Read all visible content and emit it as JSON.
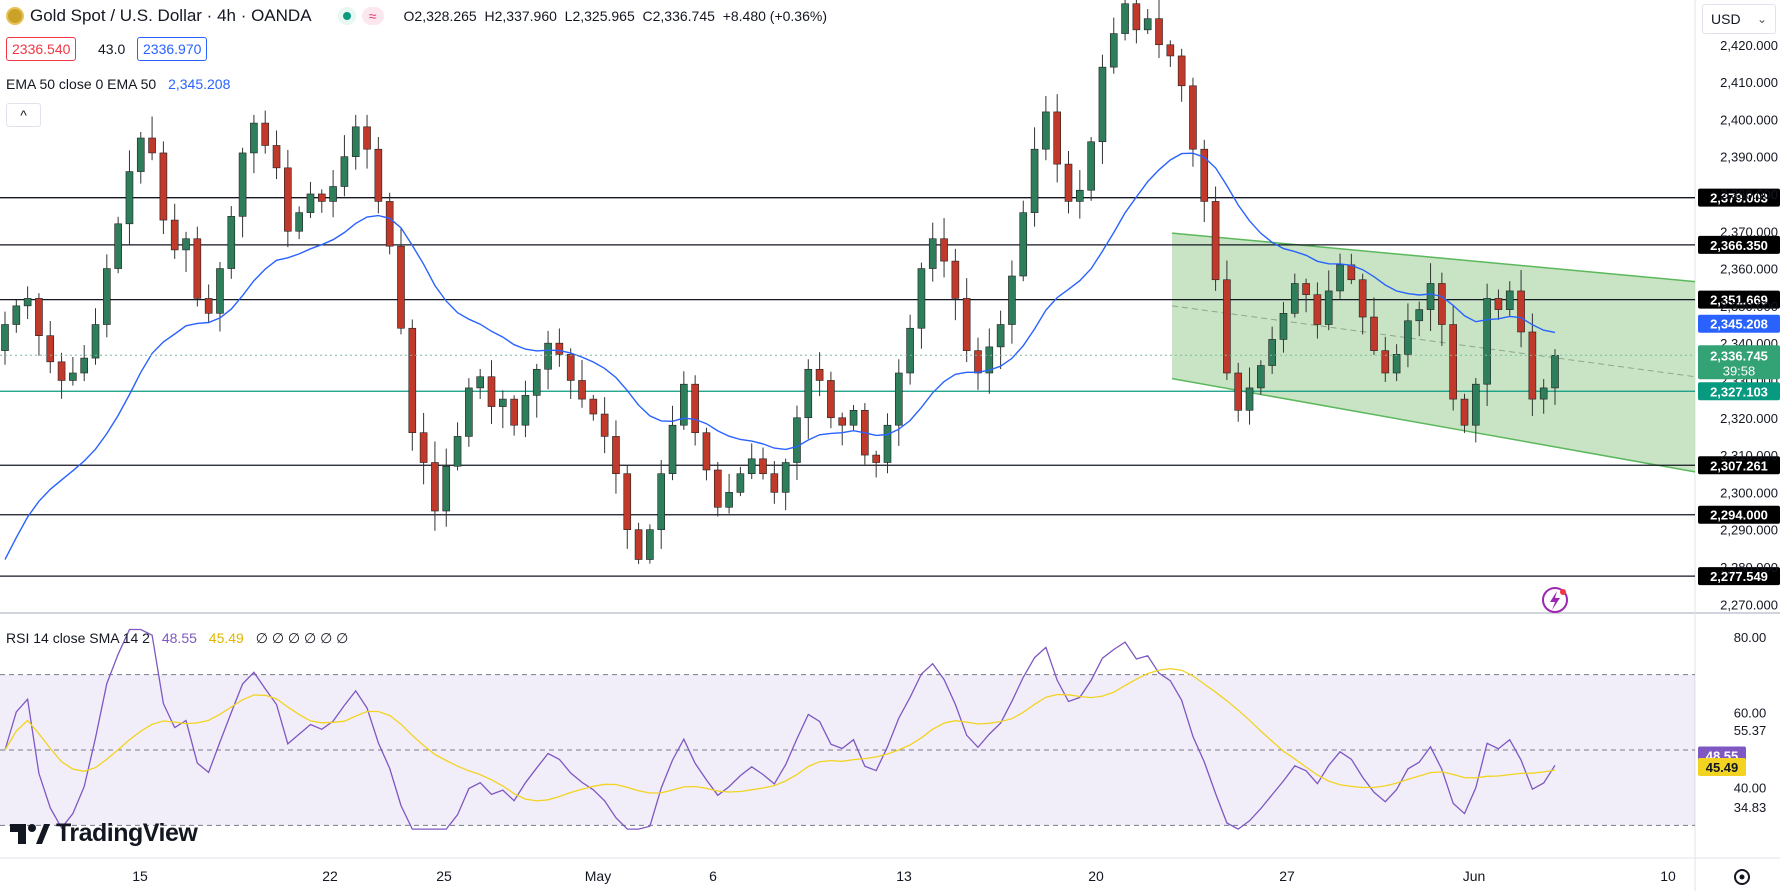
{
  "header": {
    "symbol": "Gold Spot / U.S. Dollar · 4h · OANDA",
    "ohlc": "O2,328.265  H2,337.960  L2,325.965  C2,336.745  +8.480 (+0.36%)",
    "bid": "2336.540",
    "spread": "43.0",
    "ask": "2336.970",
    "ema_label": "EMA 50 close 0 EMA 50",
    "ema_value": "2,345.208",
    "collapse": "^"
  },
  "currency": "USD",
  "colors": {
    "up": "#2e7d5b",
    "down": "#c0392b",
    "ema": "#2962ff",
    "rsi": "#7e57c2",
    "rsi_ma": "#f2d322",
    "channel": "#b5dbb0",
    "support_teal": "#089981"
  },
  "chart_data": [
    {
      "type": "candlestick",
      "title": "Gold Spot / U.S. Dollar · 4h · OANDA",
      "ylim": [
        2266,
        2432
      ],
      "y_ticks": [
        "2,420.000",
        "2,410.000",
        "2,400.000",
        "2,390.000",
        "2,380.000",
        "2,370.000",
        "2,360.000",
        "2,350.000",
        "2,340.000",
        "2,330.000",
        "2,320.000",
        "2,310.000",
        "2,300.000",
        "2,290.000",
        "2,280.000",
        "2,270.000"
      ],
      "x_ticks": [
        "15",
        "22",
        "25",
        "May",
        "6",
        "13",
        "20",
        "27",
        "Jun",
        "10"
      ],
      "horizontal_levels": [
        {
          "label": "2,379.003",
          "value": 2379.003
        },
        {
          "label": "2,366.350",
          "value": 2366.35
        },
        {
          "label": "2,351.669",
          "value": 2351.669
        },
        {
          "label": "2,307.261",
          "value": 2307.261
        },
        {
          "label": "2,294.000",
          "value": 2294.0
        },
        {
          "label": "2,277.549",
          "value": 2277.549
        }
      ],
      "support_level": {
        "label": "2,327.103",
        "value": 2327.103
      },
      "ema_tag": {
        "label": "2,345.208",
        "value": 2345.208
      },
      "price_tag": {
        "label": "2,336.745",
        "countdown": "39:58",
        "value": 2336.745
      },
      "closes": [
        2345,
        2350,
        2352,
        2342,
        2335,
        2330,
        2332,
        2336,
        2345,
        2360,
        2372,
        2386,
        2395,
        2391,
        2373,
        2365,
        2368,
        2352,
        2348,
        2360,
        2374,
        2391,
        2399,
        2393,
        2387,
        2370,
        2375,
        2380,
        2378,
        2382,
        2390,
        2398,
        2392,
        2378,
        2366,
        2344,
        2316,
        2308,
        2295,
        2307,
        2315,
        2328,
        2331,
        2323,
        2325,
        2318,
        2326,
        2333,
        2340,
        2337,
        2330,
        2325,
        2321,
        2315,
        2305,
        2290,
        2282,
        2290,
        2305,
        2318,
        2329,
        2316,
        2306,
        2296,
        2300,
        2305,
        2309,
        2305,
        2300,
        2308,
        2320,
        2333,
        2330,
        2320,
        2318,
        2322,
        2310,
        2308,
        2318,
        2332,
        2344,
        2360,
        2368,
        2362,
        2352,
        2338,
        2332,
        2339,
        2345,
        2358,
        2375,
        2392,
        2402,
        2388,
        2378,
        2381,
        2394,
        2414,
        2423,
        2431,
        2424,
        2427,
        2420,
        2417,
        2409,
        2392,
        2378,
        2357,
        2332,
        2322,
        2328,
        2334,
        2341,
        2348,
        2356,
        2353,
        2345,
        2354,
        2361,
        2357,
        2347,
        2338,
        2332,
        2337,
        2346,
        2349,
        2356,
        2345,
        2325,
        2318,
        2329,
        2352,
        2349,
        2354,
        2343,
        2325,
        2328,
        2336.745
      ],
      "ema50_description": "EMA 50 close",
      "channel": "descending regression channel from mid-May"
    },
    {
      "type": "line",
      "title": "RSI 14 close SMA 14 2",
      "series": [
        {
          "name": "RSI",
          "last": "48.55"
        },
        {
          "name": "SMA",
          "last": "45.49"
        }
      ],
      "ylim": [
        28,
        84
      ],
      "y_ticks": [
        "80.00",
        "60.00",
        "55.37",
        "40.00",
        "34.83"
      ],
      "bands": {
        "upper": 70,
        "middle": 50,
        "lower": 30
      },
      "tags": [
        "48.55",
        "45.49"
      ],
      "legend_zeros": [
        "∅",
        "∅",
        "∅",
        "∅",
        "∅",
        "∅"
      ]
    }
  ]
}
